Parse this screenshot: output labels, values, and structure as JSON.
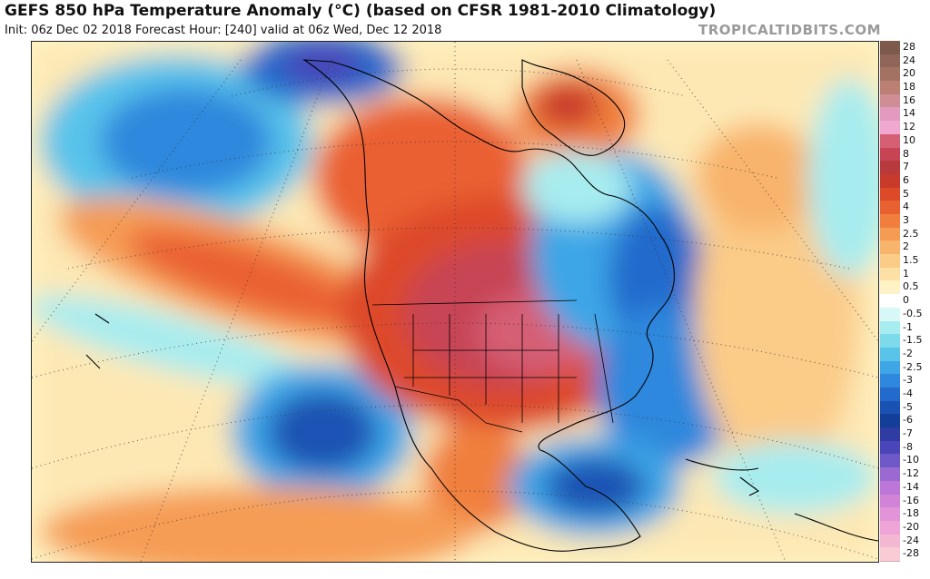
{
  "header": {
    "title": "GEFS 850 hPa Temperature Anomaly (°C) (based on CFSR 1981-2010 Climatology)",
    "subtitle": "Init: 06z Dec 02 2018   Forecast Hour: [240]   valid at 06z Wed, Dec 12 2018",
    "brand": "TROPICALTIDBITS.COM"
  },
  "colors": {
    "land_line": "#000000",
    "grid_line": "#333333"
  },
  "colorbar": [
    {
      "label": "28",
      "color": "#7d5a4b"
    },
    {
      "label": "24",
      "color": "#8f6657"
    },
    {
      "label": "20",
      "color": "#a47262"
    },
    {
      "label": "18",
      "color": "#bb7f74"
    },
    {
      "label": "16",
      "color": "#cf8e95"
    },
    {
      "label": "14",
      "color": "#e49abf"
    },
    {
      "label": "12",
      "color": "#f0a8d1"
    },
    {
      "label": "10",
      "color": "#d55f74"
    },
    {
      "label": "8",
      "color": "#c74455"
    },
    {
      "label": "7",
      "color": "#b83a3d"
    },
    {
      "label": "6",
      "color": "#c93a2a"
    },
    {
      "label": "5",
      "color": "#dd4a2a"
    },
    {
      "label": "4",
      "color": "#ea6131"
    },
    {
      "label": "3",
      "color": "#f07f3e"
    },
    {
      "label": "2.5",
      "color": "#f59c54"
    },
    {
      "label": "2",
      "color": "#f8b46c"
    },
    {
      "label": "1.5",
      "color": "#fbcb88"
    },
    {
      "label": "1",
      "color": "#fde0a6"
    },
    {
      "label": "0.5",
      "color": "#fef2c6"
    },
    {
      "label": "0",
      "color": "#ffffff"
    },
    {
      "label": "-0.5",
      "color": "#d8f7f7"
    },
    {
      "label": "-1",
      "color": "#a7ecef"
    },
    {
      "label": "-1.5",
      "color": "#7ddaeb"
    },
    {
      "label": "-2",
      "color": "#59c3ea"
    },
    {
      "label": "-2.5",
      "color": "#3ea6e6"
    },
    {
      "label": "-3",
      "color": "#2f88dd"
    },
    {
      "label": "-4",
      "color": "#226bcc"
    },
    {
      "label": "-5",
      "color": "#1a52b4"
    },
    {
      "label": "-6",
      "color": "#143f99"
    },
    {
      "label": "-7",
      "color": "#2f3ca4"
    },
    {
      "label": "-8",
      "color": "#4a45b8"
    },
    {
      "label": "-10",
      "color": "#6f59c8"
    },
    {
      "label": "-12",
      "color": "#9a6ad2"
    },
    {
      "label": "-14",
      "color": "#bb76d7"
    },
    {
      "label": "-16",
      "color": "#d183d8"
    },
    {
      "label": "-18",
      "color": "#e394d9"
    },
    {
      "label": "-20",
      "color": "#eea4d6"
    },
    {
      "label": "-24",
      "color": "#f4b7d2"
    },
    {
      "label": "-28",
      "color": "#f9cbd4"
    }
  ]
}
